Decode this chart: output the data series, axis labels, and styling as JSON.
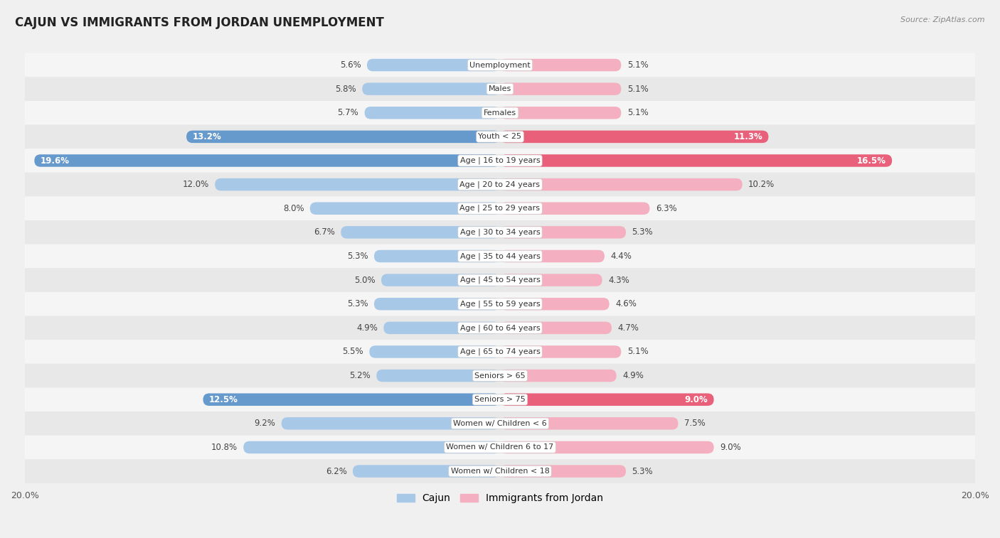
{
  "title": "CAJUN VS IMMIGRANTS FROM JORDAN UNEMPLOYMENT",
  "source": "Source: ZipAtlas.com",
  "categories": [
    "Unemployment",
    "Males",
    "Females",
    "Youth < 25",
    "Age | 16 to 19 years",
    "Age | 20 to 24 years",
    "Age | 25 to 29 years",
    "Age | 30 to 34 years",
    "Age | 35 to 44 years",
    "Age | 45 to 54 years",
    "Age | 55 to 59 years",
    "Age | 60 to 64 years",
    "Age | 65 to 74 years",
    "Seniors > 65",
    "Seniors > 75",
    "Women w/ Children < 6",
    "Women w/ Children 6 to 17",
    "Women w/ Children < 18"
  ],
  "cajun_values": [
    5.6,
    5.8,
    5.7,
    13.2,
    19.6,
    12.0,
    8.0,
    6.7,
    5.3,
    5.0,
    5.3,
    4.9,
    5.5,
    5.2,
    12.5,
    9.2,
    10.8,
    6.2
  ],
  "jordan_values": [
    5.1,
    5.1,
    5.1,
    11.3,
    16.5,
    10.2,
    6.3,
    5.3,
    4.4,
    4.3,
    4.6,
    4.7,
    5.1,
    4.9,
    9.0,
    7.5,
    9.0,
    5.3
  ],
  "cajun_color_normal": "#a8c8e8",
  "jordan_color_normal": "#f4b0c0",
  "cajun_color_highlight": "#6699cc",
  "jordan_color_highlight": "#e8607a",
  "highlight_rows": [
    3,
    4,
    14
  ],
  "x_max": 20.0,
  "row_bg_even": "#f5f5f5",
  "row_bg_odd": "#e8e8e8",
  "legend_label_cajun": "Cajun",
  "legend_label_jordan": "Immigrants from Jordan"
}
